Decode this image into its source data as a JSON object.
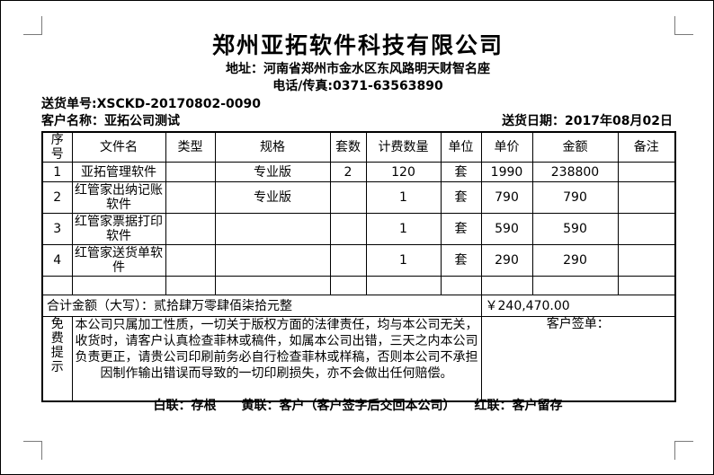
{
  "header": {
    "company": "郑州亚拓软件科技有限公司",
    "address": "地址：河南省郑州市金水区东风路明天财智名座",
    "phone": "电话/传真:0371-63563890",
    "delivery_no": "送货单号:XSCKD-20170802-0090",
    "customer": "客户名称：亚拓公司测试",
    "delivery_date": "送货日期：2017年08月02日"
  },
  "table": {
    "headers": [
      "序号",
      "文件名",
      "类型",
      "规格",
      "套数",
      "计费数量",
      "单位",
      "单价",
      "金额",
      "备注"
    ],
    "rows": [
      [
        "1",
        "亚拓管理软件",
        "",
        "专业版",
        "2",
        "120",
        "套",
        "1990",
        "238800",
        ""
      ],
      [
        "2",
        "红管家出纳记账软件",
        "",
        "专业版",
        "",
        "1",
        "套",
        "790",
        "790",
        ""
      ],
      [
        "3",
        "红管家票据打印软件",
        "",
        "",
        "",
        "1",
        "套",
        "590",
        "590",
        ""
      ],
      [
        "4",
        "红管家送货单软件",
        "",
        "",
        "",
        "1",
        "套",
        "290",
        "290",
        ""
      ],
      [
        "",
        "",
        "",
        "",
        "",
        "",
        "",
        "",
        "",
        ""
      ]
    ],
    "total_label": "合计金额（大写）：贰拾肆万零肆佰柒拾元整",
    "total_amount": "￥240,470.00",
    "tip_label": "免费提示",
    "tip_text": "本公司只属加工性质，一切关于版权方面的法律责任，均与本公司无关，收货时，请客户认真检查菲林或稿件，如属本公司出错，三天之内本公司负责更正，请贵公司印刷前务必自行检查菲林或样稿，否则本公司不承担因制作输出错误而导致的一切印刷损失，亦不会做出任何赔偿。",
    "sign_label": "客户签单："
  },
  "footer": {
    "copies_note": "白联：存根　　黄联：客户（客户签字后交回本公司）　　红联：客户留存"
  },
  "colors": {
    "text": "#000000",
    "border": "#000000",
    "crop_mark": "#7a7a7a",
    "background": "#ffffff"
  }
}
